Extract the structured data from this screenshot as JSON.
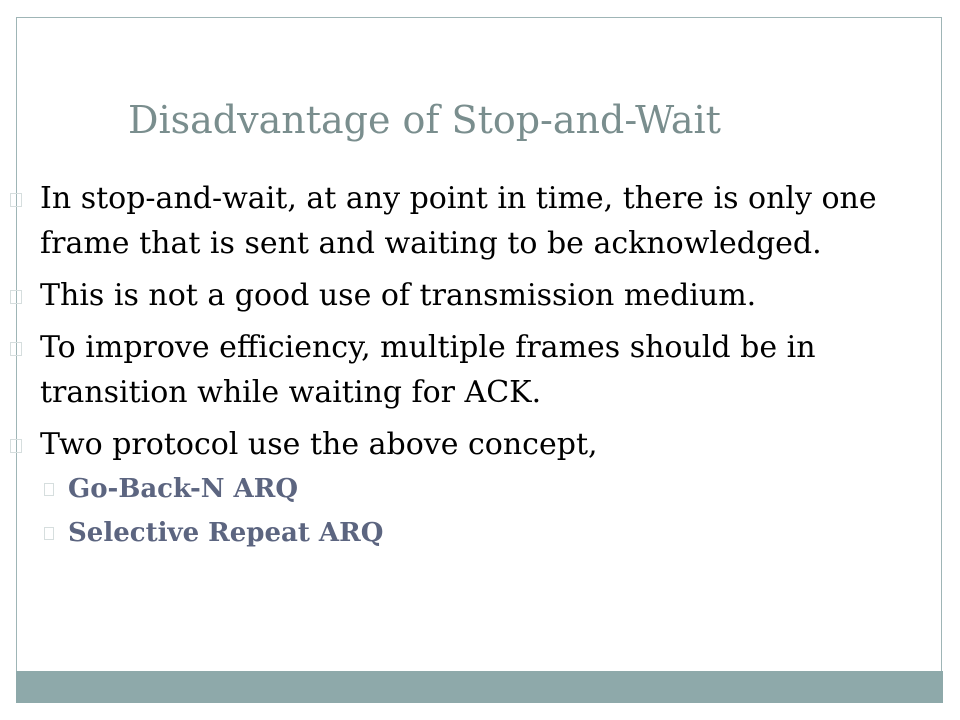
{
  "slide": {
    "title": "Disadvantage of Stop-and-Wait",
    "bullets": [
      "In stop-and-wait, at any point in time, there is only one frame that is sent and waiting to be acknowledged.",
      "This is not a good use of transmission medium.",
      "To improve efficiency, multiple frames should be in transition while waiting for ACK.",
      "Two protocol use the above concept,"
    ],
    "sub_bullets": [
      "Go-Back-N ARQ",
      "Selective Repeat ARQ"
    ]
  },
  "colors": {
    "title": "#7a8e8e",
    "sub_bullet": "#5c6580",
    "footer_bar": "#8ea9aa",
    "border": "#9fb5b6"
  }
}
